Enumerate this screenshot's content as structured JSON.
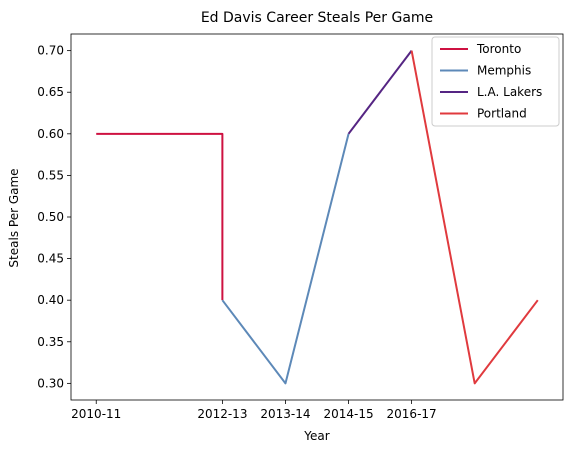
{
  "chart_data": {
    "type": "line",
    "title": "Ed Davis  Career Steals Per Game",
    "xlabel": "Year",
    "ylabel": "Steals Per Game",
    "x_tick_labels": [
      "2010-11",
      "2012-13",
      "2013-14",
      "2014-15",
      "2016-17"
    ],
    "x_tick_positions": [
      0,
      2,
      3,
      4,
      5
    ],
    "xlim": [
      -0.4,
      7.4
    ],
    "ylim": [
      0.28,
      0.72
    ],
    "y_ticks": [
      0.3,
      0.35,
      0.4,
      0.45,
      0.5,
      0.55,
      0.6,
      0.65,
      0.7
    ],
    "legend_placement": "top-right",
    "grid": false,
    "series": [
      {
        "name": "Toronto",
        "color": "#ce1141",
        "points": [
          [
            0,
            0.6
          ],
          [
            1,
            0.6
          ],
          [
            2,
            0.6
          ],
          [
            2,
            0.4
          ]
        ]
      },
      {
        "name": "Memphis",
        "color": "#5d89b8",
        "points": [
          [
            2,
            0.4
          ],
          [
            3,
            0.3
          ],
          [
            4,
            0.6
          ]
        ]
      },
      {
        "name": "L.A. Lakers",
        "color": "#552583",
        "points": [
          [
            4,
            0.6
          ],
          [
            5,
            0.7
          ]
        ]
      },
      {
        "name": "Portland",
        "color": "#e03a3e",
        "points": [
          [
            5,
            0.7
          ],
          [
            6,
            0.3
          ],
          [
            7,
            0.4
          ]
        ]
      }
    ]
  }
}
